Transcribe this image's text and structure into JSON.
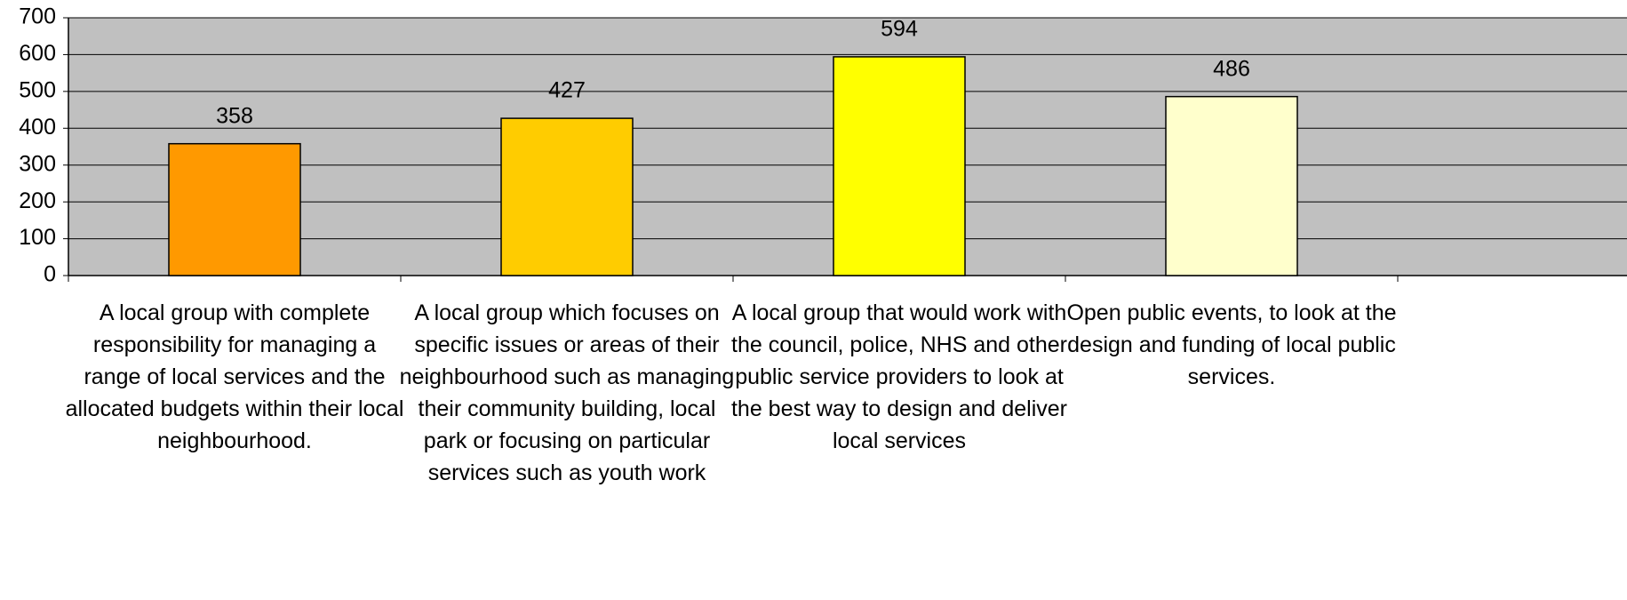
{
  "chart_data": {
    "type": "bar",
    "categories": [
      "A local group with complete responsibility for managing a range of local services and the allocated budgets within their local neighbourhood.",
      "A local group which focuses on specific issues or areas of their neighbourhood such as managing their community building, local park or focusing on particular services such as youth work",
      "A local group that would work with the council, police, NHS and other public service providers to look at the best way to design and deliver local services",
      "Open public events, to look at the design and funding of local public services."
    ],
    "values": [
      358,
      427,
      594,
      486
    ],
    "colors": [
      "#ff9900",
      "#ffcc00",
      "#ffff00",
      "#ffffcc"
    ],
    "ylim": [
      0,
      700
    ],
    "yticks": [
      0,
      100,
      200,
      300,
      400,
      500,
      600,
      700
    ],
    "grid": true
  }
}
